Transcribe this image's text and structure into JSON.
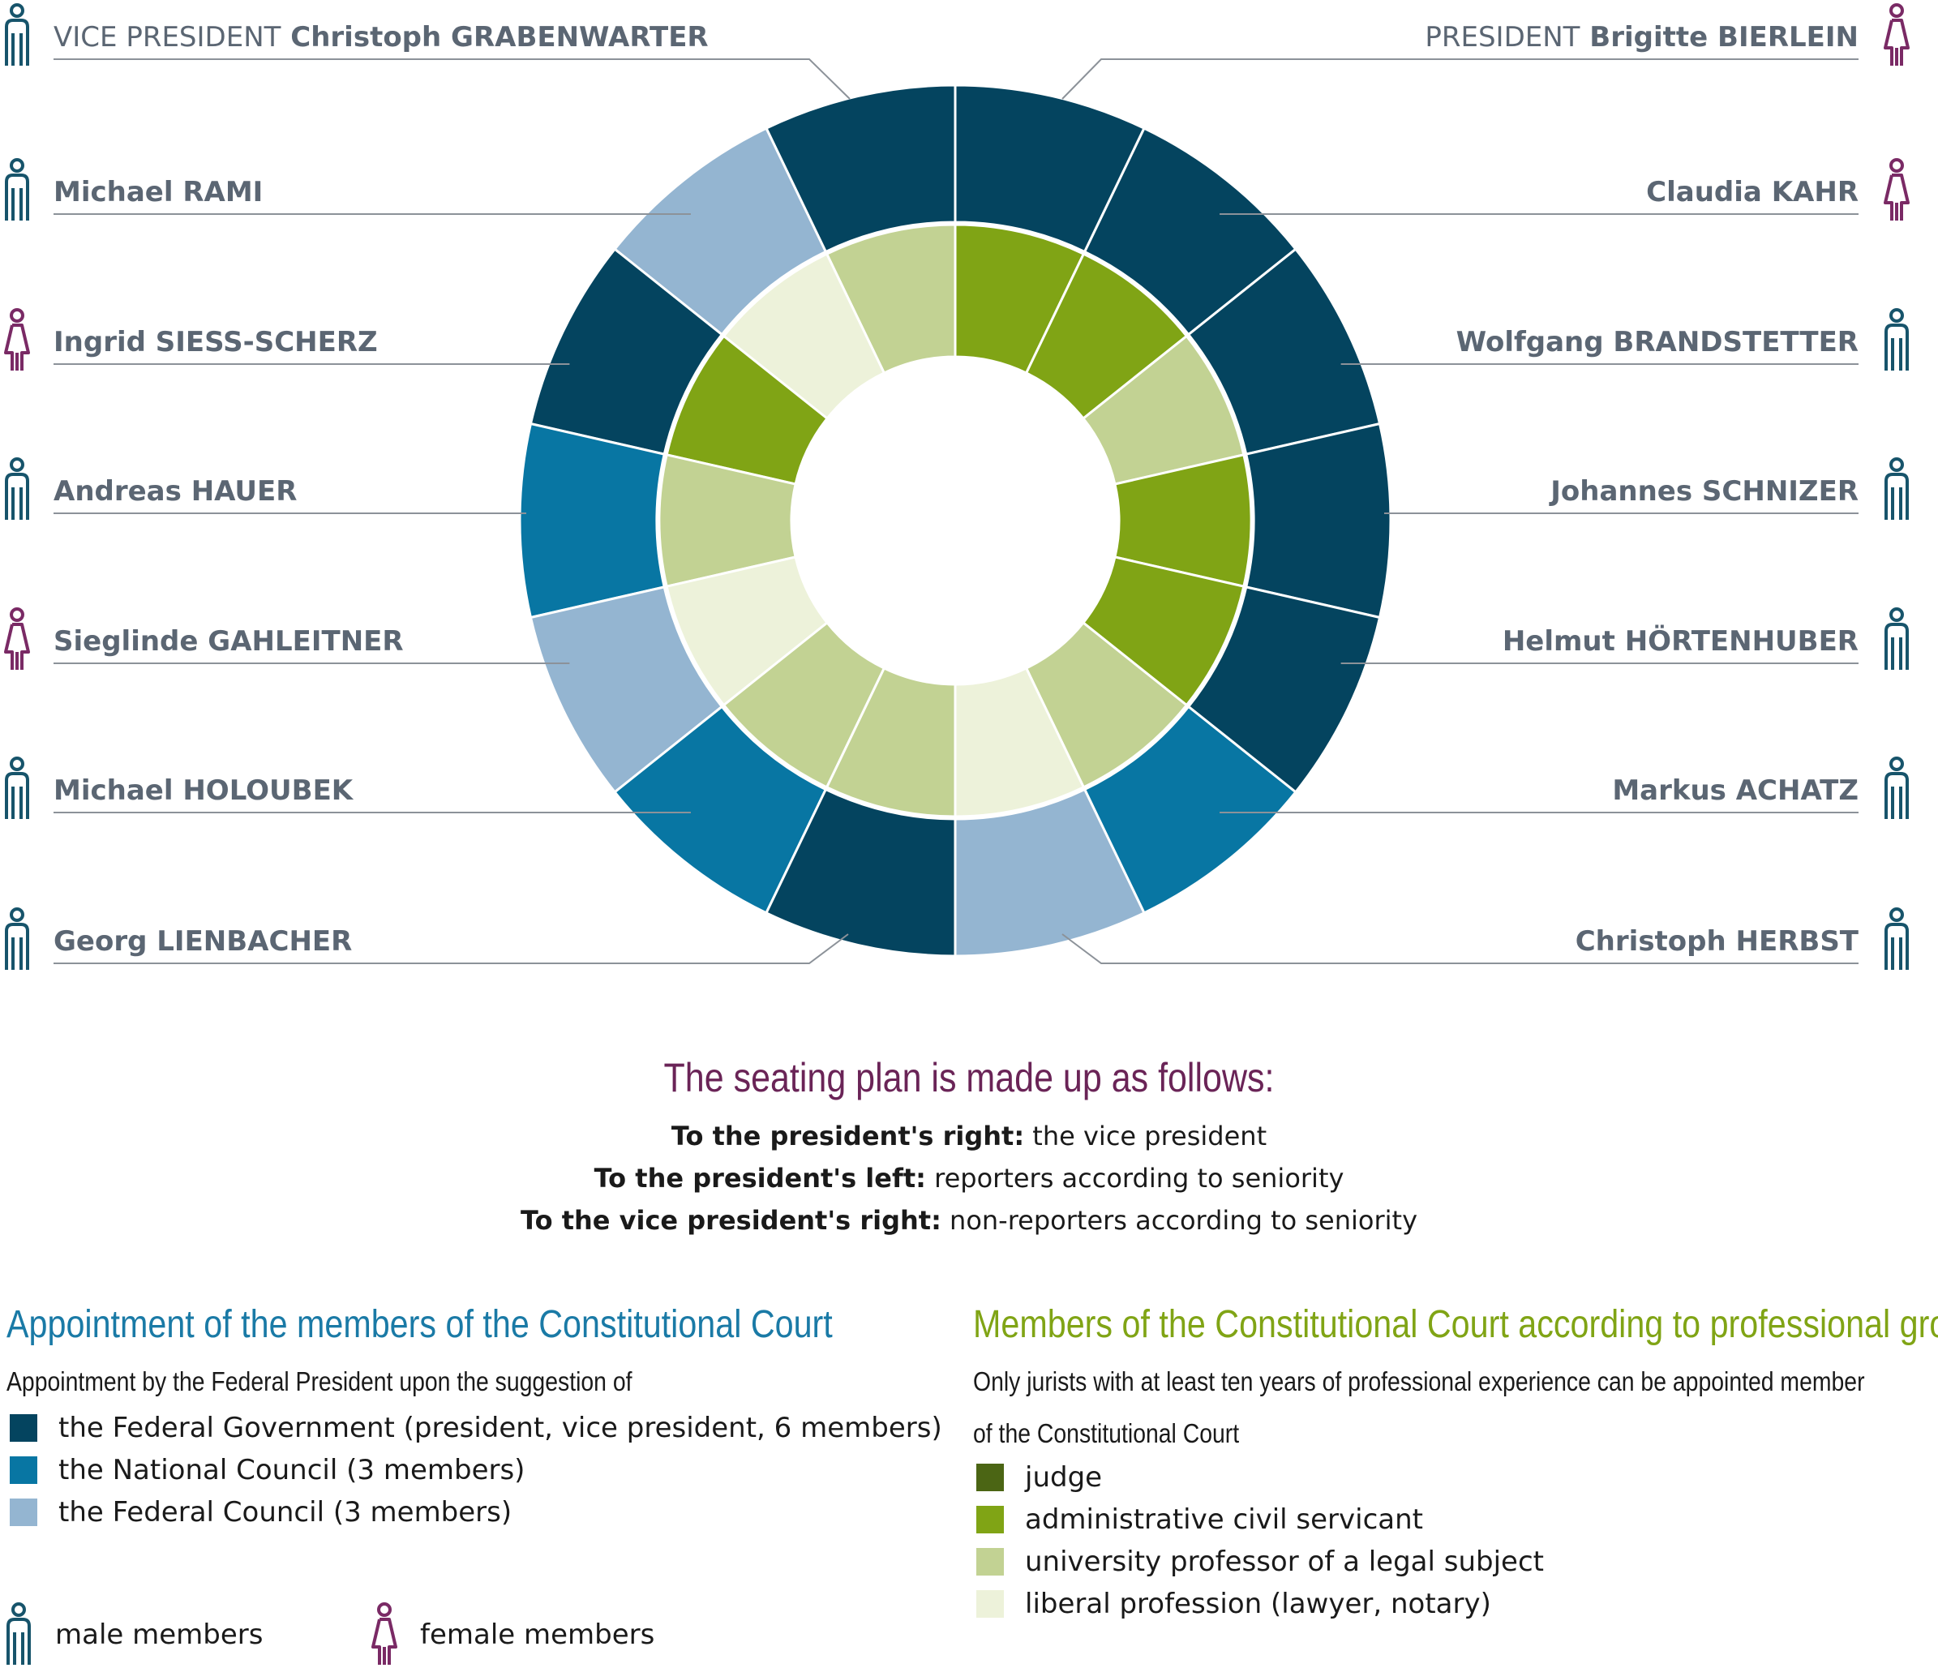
{
  "colors": {
    "federal_government": "#04445f",
    "national_council": "#0876a3",
    "federal_council": "#94b5d1",
    "judge": "#4b6514",
    "administrative_civil_servicant": "#80a415",
    "university_professor": "#c2d293",
    "liberal_profession": "#edf2da",
    "male": "#17546b",
    "female": "#7a2a65"
  },
  "members_right": [
    {
      "role": "PRESIDENT",
      "name": "Brigitte BIERLEIN",
      "gender": "female",
      "appointment": "federal_government",
      "profession": "administrative_civil_servicant"
    },
    {
      "role": "",
      "name": "Claudia KAHR",
      "gender": "female",
      "appointment": "federal_government",
      "profession": "administrative_civil_servicant"
    },
    {
      "role": "",
      "name": "Wolfgang BRANDSTETTER",
      "gender": "male",
      "appointment": "federal_government",
      "profession": "university_professor"
    },
    {
      "role": "",
      "name": "Johannes SCHNIZER",
      "gender": "male",
      "appointment": "federal_government",
      "profession": "administrative_civil_servicant"
    },
    {
      "role": "",
      "name": "Helmut HÖRTENHUBER",
      "gender": "male",
      "appointment": "federal_government",
      "profession": "administrative_civil_servicant"
    },
    {
      "role": "",
      "name": "Markus ACHATZ",
      "gender": "male",
      "appointment": "national_council",
      "profession": "university_professor"
    },
    {
      "role": "",
      "name": "Christoph HERBST",
      "gender": "male",
      "appointment": "federal_council",
      "profession": "liberal_profession"
    }
  ],
  "members_left": [
    {
      "role": "VICE PRESIDENT",
      "name": "Christoph GRABENWARTER",
      "gender": "male",
      "appointment": "federal_government",
      "profession": "university_professor"
    },
    {
      "role": "",
      "name": "Michael RAMI",
      "gender": "male",
      "appointment": "federal_council",
      "profession": "liberal_profession"
    },
    {
      "role": "",
      "name": "Ingrid SIESS-SCHERZ",
      "gender": "female",
      "appointment": "federal_government",
      "profession": "administrative_civil_servicant"
    },
    {
      "role": "",
      "name": "Andreas HAUER",
      "gender": "male",
      "appointment": "national_council",
      "profession": "university_professor"
    },
    {
      "role": "",
      "name": "Sieglinde GAHLEITNER",
      "gender": "female",
      "appointment": "federal_council",
      "profession": "liberal_profession"
    },
    {
      "role": "",
      "name": "Michael HOLOUBEK",
      "gender": "male",
      "appointment": "national_council",
      "profession": "university_professor"
    },
    {
      "role": "",
      "name": "Georg LIENBACHER",
      "gender": "male",
      "appointment": "federal_government",
      "profession": "university_professor"
    }
  ],
  "seating": {
    "heading": "The seating plan is made up as follows:",
    "rules": [
      {
        "bold": "To the president's right:",
        "text": " the vice president"
      },
      {
        "bold": "To the president's left:",
        "text": " reporters according to seniority"
      },
      {
        "bold": "To the vice president's right:",
        "text": " non-reporters according to seniority"
      }
    ]
  },
  "appointment_legend": {
    "title": "Appointment of the members of the Constitutional Court",
    "subtitle": "Appointment by the Federal President upon the suggestion of",
    "items": [
      {
        "key": "federal_government",
        "label": "the Federal Government (president, vice president, 6 members)"
      },
      {
        "key": "national_council",
        "label": "the National Council (3 members)"
      },
      {
        "key": "federal_council",
        "label": "the Federal Council (3 members)"
      }
    ]
  },
  "profession_legend": {
    "title": "Members of the Constitutional Court according to professional group",
    "subtitle_line1": "Only jurists with at least ten years of professional experience can be appointed member",
    "subtitle_line2": "of the Constitutional Court",
    "items": [
      {
        "key": "judge",
        "label": "judge"
      },
      {
        "key": "administrative_civil_servicant",
        "label": "administrative civil servicant"
      },
      {
        "key": "university_professor",
        "label": "university professor of a legal subject"
      },
      {
        "key": "liberal_profession",
        "label": "liberal profession (lawyer, notary)"
      }
    ]
  },
  "gender_legend": {
    "male": "male members",
    "female": "female members"
  }
}
